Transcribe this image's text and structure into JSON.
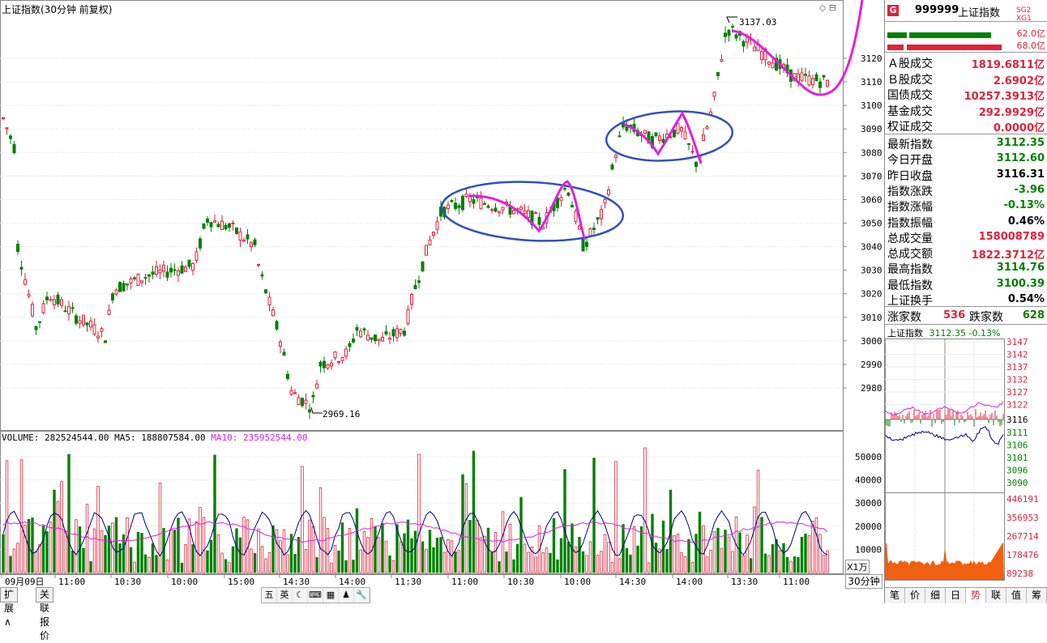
{
  "title": "上证指数(30分钟 前复权)",
  "window_controls": "◇ ⊟",
  "price_axis": [
    "3120",
    "3110",
    "3100",
    "3090",
    "3080",
    "3070",
    "3060",
    "3050",
    "3040",
    "3030",
    "3020",
    "3010",
    "3000",
    "2990",
    "2980"
  ],
  "annotations": {
    "high": "3137.03",
    "low": "2969.16"
  },
  "volume": {
    "label": "VOLUME: 282524544.00",
    "ma5": "MA5: 188807584.00",
    "ma10": "MA10: 235952544.00",
    "axis": [
      "50000",
      "40000",
      "30000",
      "20000",
      "10000"
    ],
    "unit": "X1万"
  },
  "time_axis": [
    "09月09日",
    "11:00",
    "10:30",
    "10:00",
    "15:00",
    "14:30",
    "14:00",
    "11:30",
    "11:00",
    "10:30",
    "10:00",
    "14:30",
    "14:00",
    "13:30",
    "11:00"
  ],
  "period": "30分钟",
  "bottom_tabs": [
    "扩展∧",
    "关联报价"
  ],
  "toolbar": [
    "五",
    "英",
    "☾",
    "⌨",
    "▦",
    "♟",
    "🔧"
  ],
  "panel": {
    "icon": "G",
    "code": "999999",
    "name": "上证指数",
    "tags": "SG2 XG1",
    "flow1": "62.0亿",
    "flow2": "68.0亿",
    "turnover": [
      {
        "label": "Ａ股成交",
        "value": "1819.6811亿",
        "color": "red"
      },
      {
        "label": "Ｂ股成交",
        "value": "2.6902亿",
        "color": "red"
      },
      {
        "label": "国债成交",
        "value": "10257.3913亿",
        "color": "red"
      },
      {
        "label": "基金成交",
        "value": "292.9929亿",
        "color": "red"
      },
      {
        "label": "权证成交",
        "value": "0.0000亿",
        "color": "red"
      }
    ],
    "stats": [
      {
        "label": "最新指数",
        "value": "3112.35",
        "color": "green"
      },
      {
        "label": "今日开盘",
        "value": "3112.60",
        "color": "green"
      },
      {
        "label": "昨日收盘",
        "value": "3116.31",
        "color": "black"
      },
      {
        "label": "指数涨跌",
        "value": "-3.96",
        "color": "green"
      },
      {
        "label": "指数涨幅",
        "value": "-0.13%",
        "color": "green"
      },
      {
        "label": "指数振幅",
        "value": "0.46%",
        "color": "black"
      },
      {
        "label": "总成交量",
        "value": "158008789",
        "color": "red"
      },
      {
        "label": "总成交额",
        "value": "1822.3712亿",
        "color": "red"
      },
      {
        "label": "最高指数",
        "value": "3114.76",
        "color": "green"
      },
      {
        "label": "最低指数",
        "value": "3100.39",
        "color": "green"
      },
      {
        "label": "上证换手",
        "value": "0.54%",
        "color": "black"
      }
    ],
    "breadth": {
      "up_label": "涨家数",
      "up": "536",
      "down_label": "跌家数",
      "down": "628"
    },
    "mini": {
      "title": "上证指数",
      "price": "3112.35",
      "change": "-0.13%",
      "axis_red": [
        "3147",
        "3142",
        "3137",
        "3132",
        "3127",
        "3122"
      ],
      "axis_mid": "3116",
      "axis_green": [
        "3111",
        "3106",
        "3101",
        "3096",
        "3090"
      ],
      "vol_axis": [
        "446191",
        "356953",
        "267714",
        "178476",
        "89238"
      ]
    },
    "tabs": [
      "笔",
      "价",
      "细",
      "日",
      "势",
      "联",
      "值",
      "筹"
    ],
    "active_tab": "势"
  },
  "colors": {
    "up": "#e0223b",
    "down": "#008000",
    "ma_blue": "#000080",
    "ma_magenta": "#e020e0",
    "circle_blue": "#3050c0"
  }
}
